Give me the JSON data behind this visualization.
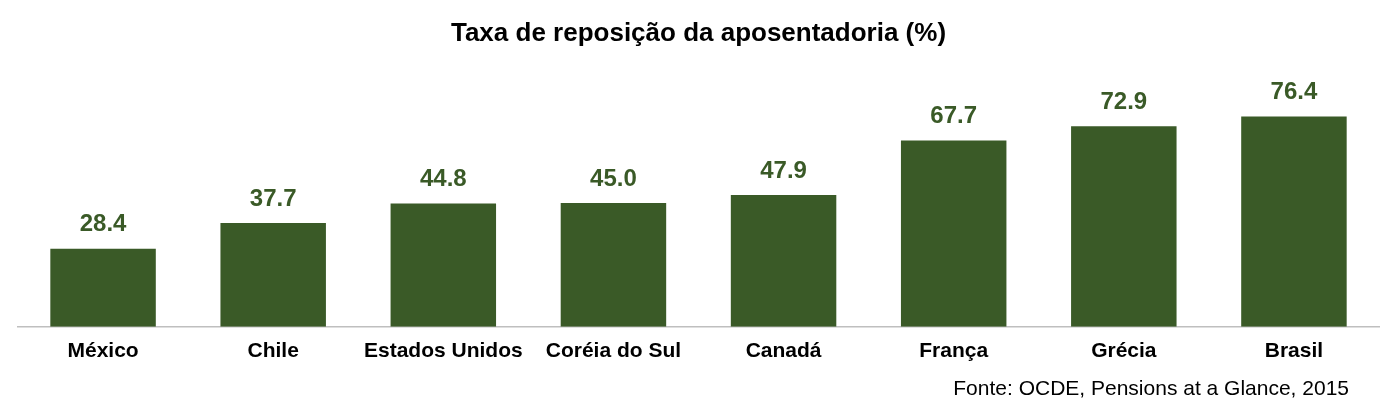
{
  "chart_data": {
    "type": "bar",
    "title": "Taxa de reposição da aposentadoria (%)",
    "categories": [
      "México",
      "Chile",
      "Estados Unidos",
      "Coréia do Sul",
      "Canadá",
      "França",
      "Grécia",
      "Brasil"
    ],
    "values": [
      28.4,
      37.7,
      44.8,
      45.0,
      47.9,
      67.7,
      72.9,
      76.4
    ],
    "value_labels": [
      "28.4",
      "37.7",
      "44.8",
      "45.0",
      "47.9",
      "67.7",
      "72.9",
      "76.4"
    ],
    "color": "#3a5a27",
    "grid": false,
    "legend": false,
    "annotations": [
      "Fonte: OCDE, Pensions at a Glance, 2015"
    ]
  }
}
